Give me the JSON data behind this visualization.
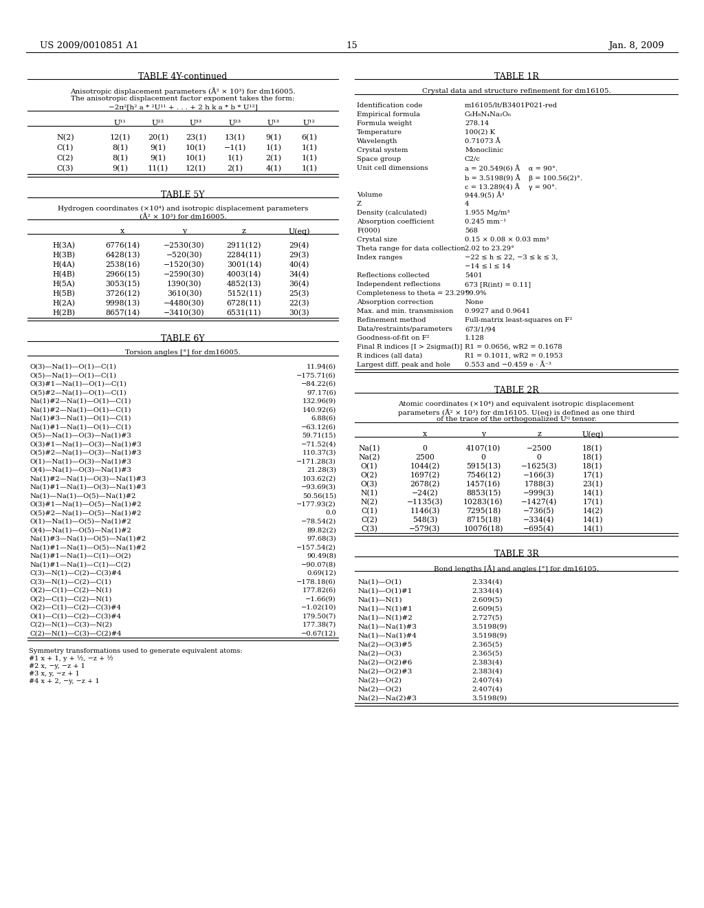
{
  "bg_color": "#ffffff",
  "header_left": "US 2009/0010851 A1",
  "header_right": "Jan. 8, 2009",
  "page_num": "15",
  "table4Y": {
    "title": "TABLE 4Y-continued",
    "subtitle1": "Anisotropic displacement parameters (Å² × 10³) for dm16005.",
    "subtitle2": "The anisotropic displacement factor exponent takes the form:",
    "subtitle3": "−2π²[h² a * ²U¹¹ + . . . + 2 h k a * b * U¹²]",
    "col_headers": [
      "",
      "U¹¹",
      "U²²",
      "U³³",
      "U²³",
      "U¹³",
      "U¹²"
    ],
    "rows": [
      [
        "N(2)",
        "12(1)",
        "20(1)",
        "23(1)",
        "13(1)",
        "9(1)",
        "6(1)"
      ],
      [
        "C(1)",
        "8(1)",
        "9(1)",
        "10(1)",
        "−1(1)",
        "1(1)",
        "1(1)"
      ],
      [
        "C(2)",
        "8(1)",
        "9(1)",
        "10(1)",
        "1(1)",
        "2(1)",
        "1(1)"
      ],
      [
        "C(3)",
        "9(1)",
        "11(1)",
        "12(1)",
        "2(1)",
        "4(1)",
        "1(1)"
      ]
    ]
  },
  "table5Y": {
    "title": "TABLE 5Y",
    "subtitle1": "Hydrogen coordinates (×10⁴) and isotropic displacement parameters",
    "subtitle2": "(Å² × 10³) for dm16005.",
    "col_headers": [
      "",
      "x",
      "y",
      "z",
      "U(eq)"
    ],
    "rows": [
      [
        "H(3A)",
        "6776(14)",
        "−2530(30)",
        "2911(12)",
        "29(4)"
      ],
      [
        "H(3B)",
        "6428(13)",
        "−520(30)",
        "2284(11)",
        "29(3)"
      ],
      [
        "H(4A)",
        "2538(16)",
        "−1520(30)",
        "3001(14)",
        "40(4)"
      ],
      [
        "H(4B)",
        "2966(15)",
        "−2590(30)",
        "4003(14)",
        "34(4)"
      ],
      [
        "H(5A)",
        "3053(15)",
        "1390(30)",
        "4852(13)",
        "36(4)"
      ],
      [
        "H(5B)",
        "3726(12)",
        "3610(30)",
        "5152(11)",
        "25(3)"
      ],
      [
        "H(2A)",
        "9998(13)",
        "−4480(30)",
        "6728(11)",
        "22(3)"
      ],
      [
        "H(2B)",
        "8657(14)",
        "−3410(30)",
        "6531(11)",
        "30(3)"
      ]
    ]
  },
  "table6Y": {
    "title": "TABLE 6Y",
    "subtitle1": "Torsion angles [°] for dm16005.",
    "rows": [
      [
        "O(3)—Na(1)—O(1)—C(1)",
        "11.94(6)"
      ],
      [
        "O(5)—Na(1)—O(1)—C(1)",
        "−175.71(6)"
      ],
      [
        "O(3)#1—Na(1)—O(1)—C(1)",
        "−84.22(6)"
      ],
      [
        "O(5)#2—Na(1)—O(1)—C(1)",
        "97.17(6)"
      ],
      [
        "Na(1)#2—Na(1)—O(1)—C(1)",
        "132.96(9)"
      ],
      [
        "Na(1)#2—Na(1)—O(1)—C(1)",
        "140.92(6)"
      ],
      [
        "Na(1)#3—Na(1)—O(1)—C(1)",
        "6.88(6)"
      ],
      [
        "Na(1)#1—Na(1)—O(1)—C(1)",
        "−63.12(6)"
      ],
      [
        "O(5)—Na(1)—O(3)—Na(1)#3",
        "59.71(15)"
      ],
      [
        "O(3)#1—Na(1)—O(3)—Na(1)#3",
        "−71.52(4)"
      ],
      [
        "O(5)#2—Na(1)—O(3)—Na(1)#3",
        "110.37(3)"
      ],
      [
        "O(1)—Na(1)—O(3)—Na(1)#3",
        "−171.28(3)"
      ],
      [
        "O(4)—Na(1)—O(3)—Na(1)#3",
        "21.28(3)"
      ],
      [
        "Na(1)#2—Na(1)—O(3)—Na(1)#3",
        "103.62(2)"
      ],
      [
        "Na(1)#1—Na(1)—O(3)—Na(1)#3",
        "−93.69(3)"
      ],
      [
        "Na(1)—Na(1)—O(5)—Na(1)#2",
        "50.56(15)"
      ],
      [
        "O(3)#1—Na(1)—O(5)—Na(1)#2",
        "−177.93(2)"
      ],
      [
        "O(5)#2—Na(1)—O(5)—Na(1)#2",
        "0.0"
      ],
      [
        "O(1)—Na(1)—O(5)—Na(1)#2",
        "−78.54(2)"
      ],
      [
        "O(4)—Na(1)—O(5)—Na(1)#2",
        "89.82(2)"
      ],
      [
        "Na(1)#3—Na(1)—O(5)—Na(1)#2",
        "97.68(3)"
      ],
      [
        "Na(1)#1—Na(1)—O(5)—Na(1)#2",
        "−157.54(2)"
      ],
      [
        "Na(1)#1—Na(1)—C(1)—O(2)",
        "90.49(8)"
      ],
      [
        "Na(1)#1—Na(1)—C(1)—C(2)",
        "−90.07(8)"
      ],
      [
        "C(3)—N(1)—C(2)—C(3)#4",
        "0.69(12)"
      ],
      [
        "C(3)—N(1)—C(2)—C(1)",
        "−178.18(6)"
      ],
      [
        "O(2)—C(1)—C(2)—N(1)",
        "177.82(6)"
      ],
      [
        "O(2)—C(1)—C(2)—N(1)",
        "−1.66(9)"
      ],
      [
        "O(2)—C(1)—C(2)—C(3)#4",
        "−1.02(10)"
      ],
      [
        "O(1)—C(1)—C(2)—C(3)#4",
        "179.50(7)"
      ],
      [
        "C(2)—N(1)—C(3)—N(2)",
        "177.38(7)"
      ],
      [
        "C(2)—N(1)—C(3)—C(2)#4",
        "−0.67(12)"
      ]
    ],
    "footnote_lines": [
      "Symmetry transformations used to generate equivalent atoms:",
      "#1 x + 1, y + ½, −z + ½",
      "#2 x, −y, −z + 1",
      "#3 x, y, −z + 1",
      "#4 x + 2, −y, −z + 1"
    ]
  },
  "table1R": {
    "title": "TABLE 1R",
    "subtitle": "Crystal data and structure refinement for dm16105.",
    "rows": [
      [
        "Identification code",
        "m16105/lt/B3401P021-red"
      ],
      [
        "Empirical formula",
        "C₆H₈N₄Na₂O₆"
      ],
      [
        "Formula weight",
        "278.14"
      ],
      [
        "Temperature",
        "100(2) K"
      ],
      [
        "Wavelength",
        "0.71073 Å"
      ],
      [
        "Crystal system",
        "Monoclinic"
      ],
      [
        "Space group",
        "C2/c"
      ],
      [
        "Unit cell dimensions",
        "a = 20.549(6) Å    α = 90°."
      ],
      [
        "",
        "b = 3.5198(9) Å    β = 100.56(2)°."
      ],
      [
        "",
        "c = 13.289(4) Å    γ = 90°."
      ],
      [
        "Volume",
        "944.9(5) Å³"
      ],
      [
        "Z",
        "4"
      ],
      [
        "Density (calculated)",
        "1.955 Mg/m³"
      ],
      [
        "Absorption coefficient",
        "0.245 mm⁻¹"
      ],
      [
        "F(000)",
        "568"
      ],
      [
        "Crystal size",
        "0.15 × 0.08 × 0.03 mm³"
      ],
      [
        "Theta range for data collection",
        "2.02 to 23.29°"
      ],
      [
        "Index ranges",
        "−22 ≤ h ≤ 22, −3 ≤ k ≤ 3,"
      ],
      [
        "",
        "−14 ≤ l ≤ 14"
      ],
      [
        "Reflections collected",
        "5401"
      ],
      [
        "Independent reflections",
        "673 [R(int) = 0.11]"
      ],
      [
        "Completeness to theta = 23.29°",
        "99.9%"
      ],
      [
        "Absorption correction",
        "None"
      ],
      [
        "Max. and min. transmission",
        "0.9927 and 0.9641"
      ],
      [
        "Refinement method",
        "Full-matrix least-squares on F²"
      ],
      [
        "Data/restraints/parameters",
        "673/1/94"
      ],
      [
        "Goodness-of-fit on F²",
        "1.128"
      ],
      [
        "Final R indices [I > 2sigma(I)]",
        "R1 = 0.0656, wR2 = 0.1678"
      ],
      [
        "R indices (all data)",
        "R1 = 0.1011, wR2 = 0.1953"
      ],
      [
        "Largest diff. peak and hole",
        "0.553 and −0.459 e · Å⁻³"
      ]
    ]
  },
  "table2R": {
    "title": "TABLE 2R",
    "subtitle1": "Atomic coordinates (×10⁴) and equivalent isotropic displacement",
    "subtitle2": "parameters (Å² × 10³) for dm16105. U(eq) is defined as one third",
    "subtitle3": "of the trace of the orthogonalized Uⁱʲ tensor.",
    "col_headers": [
      "",
      "x",
      "y",
      "z",
      "U(eq)"
    ],
    "rows": [
      [
        "Na(1)",
        "0",
        "4107(10)",
        "−2500",
        "18(1)"
      ],
      [
        "Na(2)",
        "2500",
        "0",
        "0",
        "18(1)"
      ],
      [
        "O(1)",
        "1044(2)",
        "5915(13)",
        "−1625(3)",
        "18(1)"
      ],
      [
        "O(2)",
        "1697(2)",
        "7546(12)",
        "−166(3)",
        "17(1)"
      ],
      [
        "O(3)",
        "2678(2)",
        "1457(16)",
        "1788(3)",
        "23(1)"
      ],
      [
        "N(1)",
        "−24(2)",
        "8853(15)",
        "−999(3)",
        "14(1)"
      ],
      [
        "N(2)",
        "−1135(3)",
        "10283(16)",
        "−1427(4)",
        "17(1)"
      ],
      [
        "C(1)",
        "1146(3)",
        "7295(18)",
        "−736(5)",
        "14(2)"
      ],
      [
        "C(2)",
        "548(3)",
        "8715(18)",
        "−334(4)",
        "14(1)"
      ],
      [
        "C(3)",
        "−579(3)",
        "10076(18)",
        "−695(4)",
        "14(1)"
      ]
    ]
  },
  "table3R": {
    "title": "TABLE 3R",
    "subtitle": "Bond lengths [Å] and angles [°] for dm16105.",
    "rows": [
      [
        "Na(1)—O(1)",
        "2.334(4)"
      ],
      [
        "Na(1)—O(1)#1",
        "2.334(4)"
      ],
      [
        "Na(1)—N(1)",
        "2.609(5)"
      ],
      [
        "Na(1)—N(1)#1",
        "2.609(5)"
      ],
      [
        "Na(1)—N(1)#2",
        "2.727(5)"
      ],
      [
        "Na(1)—Na(1)#3",
        "3.5198(9)"
      ],
      [
        "Na(1)—Na(1)#4",
        "3.5198(9)"
      ],
      [
        "Na(2)—O(3)#5",
        "2.365(5)"
      ],
      [
        "Na(2)—O(3)",
        "2.365(5)"
      ],
      [
        "Na(2)—O(2)#6",
        "2.383(4)"
      ],
      [
        "Na(2)—O(2)#3",
        "2.383(4)"
      ],
      [
        "Na(2)—O(2)",
        "2.407(4)"
      ],
      [
        "Na(2)—O(2)",
        "2.407(4)"
      ],
      [
        "Na(2)—Na(2)#3",
        "3.5198(9)"
      ]
    ]
  }
}
